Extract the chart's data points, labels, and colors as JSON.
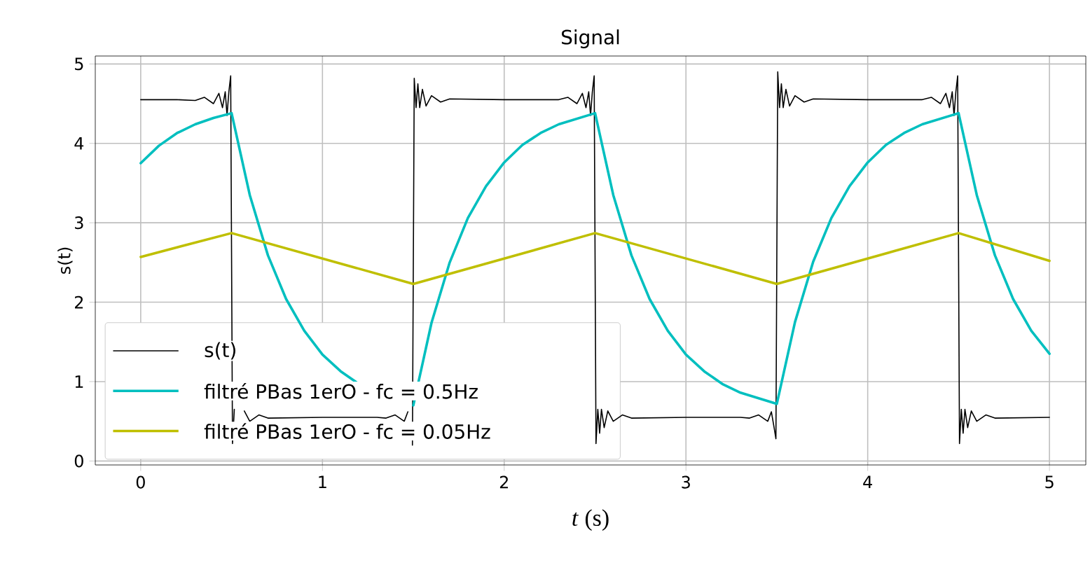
{
  "chart_data": {
    "type": "line",
    "title": "Signal",
    "xlabel": "*t* (s)",
    "ylabel": "s(t)",
    "xlim": [
      -0.25,
      5.2
    ],
    "ylim": [
      -0.05,
      5.1
    ],
    "xticks": [
      0,
      1,
      2,
      3,
      4,
      5
    ],
    "yticks": [
      0,
      1,
      2,
      3,
      4,
      5
    ],
    "grid": true,
    "legend": "bottom left",
    "series": [
      {
        "name": "s(t)",
        "color": "#000000",
        "x": [
          0,
          0.1,
          0.2,
          0.3,
          0.35,
          0.4,
          0.43,
          0.45,
          0.465,
          0.475,
          0.485,
          0.495,
          0.505,
          0.515,
          0.525,
          0.535,
          0.55,
          0.57,
          0.6,
          0.65,
          0.7,
          1.0,
          1.3,
          1.35,
          1.4,
          1.45,
          1.47,
          1.485,
          1.495,
          1.505,
          1.515,
          1.525,
          1.535,
          1.55,
          1.57,
          1.6,
          1.65,
          1.7,
          2.0,
          2.3,
          2.35,
          2.4,
          2.43,
          2.45,
          2.465,
          2.475,
          2.485,
          2.495,
          2.505,
          2.515,
          2.525,
          2.535,
          2.55,
          2.57,
          2.6,
          2.65,
          2.7,
          3.0,
          3.3,
          3.35,
          3.4,
          3.45,
          3.47,
          3.485,
          3.495,
          3.505,
          3.515,
          3.525,
          3.535,
          3.55,
          3.57,
          3.6,
          3.65,
          3.7,
          4.0,
          4.3,
          4.35,
          4.4,
          4.43,
          4.45,
          4.465,
          4.475,
          4.485,
          4.495,
          4.505,
          4.515,
          4.525,
          4.535,
          4.55,
          4.57,
          4.6,
          4.65,
          4.7,
          5.0
        ],
        "values": [
          4.55,
          4.55,
          4.55,
          4.54,
          4.58,
          4.5,
          4.63,
          4.45,
          4.65,
          4.35,
          4.65,
          4.85,
          0.22,
          0.65,
          null,
          0.65,
          null,
          0.63,
          0.5,
          0.58,
          0.54,
          0.55,
          0.55,
          0.54,
          0.58,
          0.5,
          0.62,
          null,
          0.2,
          4.82,
          4.45,
          4.75,
          4.45,
          4.68,
          4.47,
          4.6,
          4.52,
          4.56,
          4.55,
          4.55,
          4.58,
          4.5,
          4.63,
          4.45,
          4.65,
          4.35,
          4.65,
          4.85,
          0.22,
          0.65,
          0.35,
          0.65,
          0.42,
          0.63,
          0.5,
          0.58,
          0.54,
          0.55,
          0.55,
          0.54,
          0.58,
          0.5,
          0.62,
          0.42,
          0.28,
          4.9,
          4.45,
          4.75,
          4.45,
          4.68,
          4.47,
          4.6,
          4.52,
          4.56,
          4.55,
          4.55,
          4.58,
          4.5,
          4.63,
          4.45,
          4.65,
          4.35,
          4.65,
          4.85,
          0.22,
          0.65,
          0.35,
          0.65,
          0.42,
          0.63,
          0.5,
          0.58,
          0.54,
          0.55
        ]
      },
      {
        "name": "filtré PBas 1erO - fc = 0.5Hz",
        "color": "#00bfbf",
        "x": [
          0,
          0.1,
          0.2,
          0.3,
          0.4,
          0.5,
          0.6,
          0.7,
          0.8,
          0.9,
          1.0,
          1.1,
          1.2,
          1.3,
          1.5,
          1.6,
          1.7,
          1.8,
          1.9,
          2.0,
          2.1,
          2.2,
          2.3,
          2.5,
          2.6,
          2.7,
          2.8,
          2.9,
          3.0,
          3.1,
          3.2,
          3.3,
          3.5,
          3.6,
          3.7,
          3.8,
          3.9,
          4.0,
          4.1,
          4.2,
          4.3,
          4.5,
          4.6,
          4.7,
          4.8,
          4.9,
          5.0
        ],
        "values": [
          3.75,
          3.97,
          4.13,
          4.24,
          4.32,
          4.38,
          3.35,
          2.59,
          2.04,
          1.64,
          1.34,
          1.13,
          0.97,
          null,
          0.7,
          1.74,
          2.5,
          3.06,
          3.46,
          3.76,
          3.98,
          4.13,
          4.24,
          4.38,
          3.35,
          2.59,
          2.04,
          1.64,
          1.34,
          1.13,
          0.97,
          0.86,
          0.72,
          1.75,
          2.51,
          3.06,
          3.46,
          3.76,
          3.98,
          4.13,
          4.24,
          4.38,
          3.35,
          2.59,
          2.04,
          1.64,
          1.35
        ]
      },
      {
        "name": "filtré PBas 1erO - fc = 0.05Hz",
        "color": "#bfbf00",
        "x": [
          0,
          0.5,
          1.5,
          2.5,
          3.5,
          4.5,
          5.0
        ],
        "values": [
          2.57,
          2.87,
          2.23,
          2.87,
          2.23,
          2.87,
          2.52
        ]
      }
    ]
  }
}
